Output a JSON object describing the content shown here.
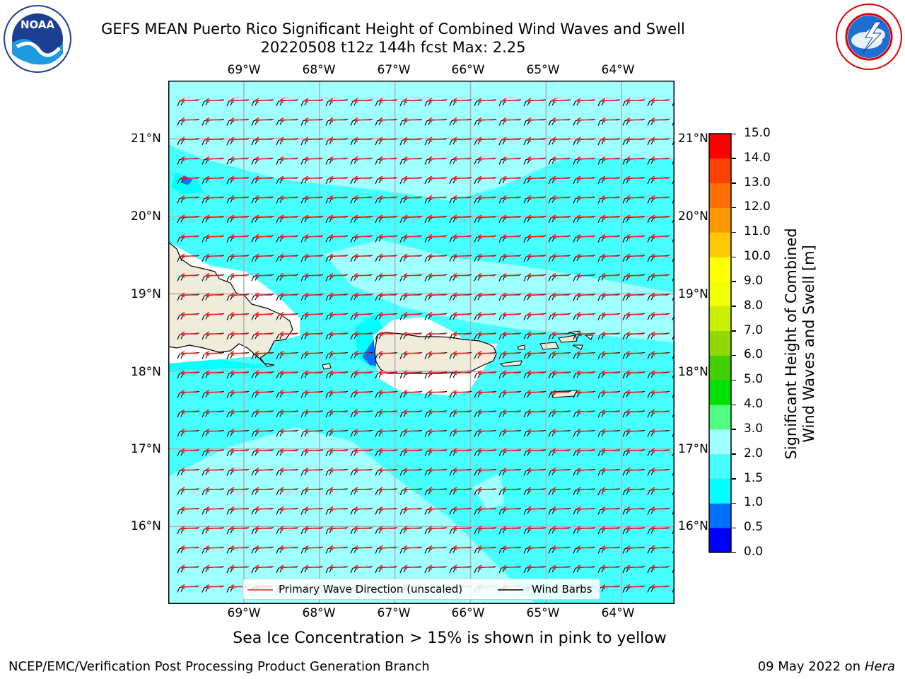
{
  "title": {
    "line1": "GEFS MEAN Puerto Rico Significant Height of Combined Wind Waves and Swell",
    "line2": "20220508 t12z 144h fcst   Max: 2.25"
  },
  "logos": {
    "left": "NOAA",
    "left_ring": "NATIONAL OCEANIC AND ATMOSPHERIC ADMINISTRATION · U.S. DEPARTMENT OF COMMERCE",
    "right_ring": "NATIONAL WEATHER SERVICE"
  },
  "map": {
    "lon_labels": [
      "69°W",
      "68°W",
      "67°W",
      "66°W",
      "65°W",
      "64°W"
    ],
    "lat_labels": [
      "21°N",
      "20°N",
      "19°N",
      "18°N",
      "17°N",
      "16°N"
    ],
    "lon_range": [
      -70.0,
      -63.3
    ],
    "lat_range": [
      15.0,
      21.75
    ]
  },
  "legend": {
    "wave_dir": "Primary Wave Direction (unscaled)",
    "wind_barbs": "Wind Barbs"
  },
  "colorbar": {
    "label_line1": "Significant Height of Combined",
    "label_line2": "Wind Waves and Swell [m]",
    "ticks": [
      "0.0",
      "0.5",
      "1.0",
      "1.5",
      "2.0",
      "3.0",
      "4.0",
      "5.0",
      "6.0",
      "7.0",
      "8.0",
      "9.0",
      "10.0",
      "11.0",
      "12.0",
      "13.0",
      "14.0",
      "15.0"
    ],
    "colors": [
      "#0000ff",
      "#0070ff",
      "#00ffff",
      "#48ffff",
      "#a0ffff",
      "#50ff80",
      "#00e000",
      "#40d000",
      "#90d800",
      "#c8f000",
      "#f0ff00",
      "#ffff00",
      "#ffc800",
      "#ff9800",
      "#ff7000",
      "#ff4000",
      "#ff0000"
    ]
  },
  "caption": "Sea Ice Concentration > 15% is shown in pink to yellow",
  "footer": {
    "left": "NCEP/EMC/Verification Post Processing Product Generation Branch",
    "right_date": "09 May 2022 on",
    "right_host": "Hera"
  },
  "colors": {
    "land": "#efecdc",
    "sea_low": "#48ffff",
    "sea_mid": "#a0ffff",
    "arrow": "#ee2222",
    "grid": "#b0b0b0"
  }
}
